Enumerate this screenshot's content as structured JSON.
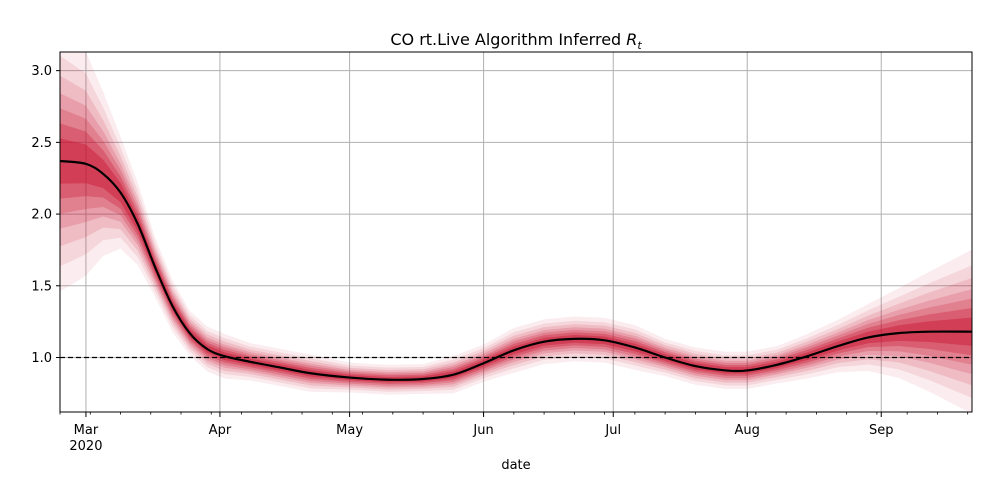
{
  "chart_data": {
    "type": "line",
    "title": "CO rt.Live Algorithm Inferred",
    "title_math": "R",
    "title_math_sub": "t",
    "xlabel": "date",
    "ylabel": "",
    "x_start": "2020-02-24",
    "x_end": "2020-09-22",
    "ylim": [
      0.62,
      3.13
    ],
    "grid": true,
    "yticks": [
      1.0,
      1.5,
      2.0,
      2.5,
      3.0
    ],
    "ytick_labels": [
      "1.0",
      "1.5",
      "2.0",
      "2.5",
      "3.0"
    ],
    "xticks": [
      {
        "date": "2020-03-01",
        "label": "Mar",
        "sublabel": "2020"
      },
      {
        "date": "2020-04-01",
        "label": "Apr"
      },
      {
        "date": "2020-05-01",
        "label": "May"
      },
      {
        "date": "2020-06-01",
        "label": "Jun"
      },
      {
        "date": "2020-07-01",
        "label": "Jul"
      },
      {
        "date": "2020-08-01",
        "label": "Aug"
      },
      {
        "date": "2020-09-01",
        "label": "Sep"
      }
    ],
    "reference_line": {
      "y": 1.0,
      "style": "dashed",
      "color": "#000000"
    },
    "series": [
      {
        "color": "#000000",
        "band_color": "#c8102e",
        "points": [
          {
            "x": "2020-02-24",
            "y": 2.37,
            "band": 0.35
          },
          {
            "x": "2020-03-01",
            "y": 2.35,
            "band": 0.3
          },
          {
            "x": "2020-03-05",
            "y": 2.28,
            "band": 0.22
          },
          {
            "x": "2020-03-09",
            "y": 2.15,
            "band": 0.15
          },
          {
            "x": "2020-03-13",
            "y": 1.93,
            "band": 0.11
          },
          {
            "x": "2020-03-17",
            "y": 1.63,
            "band": 0.08
          },
          {
            "x": "2020-03-21",
            "y": 1.36,
            "band": 0.07
          },
          {
            "x": "2020-03-25",
            "y": 1.17,
            "band": 0.06
          },
          {
            "x": "2020-03-29",
            "y": 1.06,
            "band": 0.06
          },
          {
            "x": "2020-04-02",
            "y": 1.01,
            "band": 0.06
          },
          {
            "x": "2020-04-08",
            "y": 0.97,
            "band": 0.05
          },
          {
            "x": "2020-04-15",
            "y": 0.93,
            "band": 0.05
          },
          {
            "x": "2020-04-22",
            "y": 0.89,
            "band": 0.05
          },
          {
            "x": "2020-05-01",
            "y": 0.86,
            "band": 0.04
          },
          {
            "x": "2020-05-10",
            "y": 0.845,
            "band": 0.04
          },
          {
            "x": "2020-05-18",
            "y": 0.85,
            "band": 0.04
          },
          {
            "x": "2020-05-25",
            "y": 0.88,
            "band": 0.05
          },
          {
            "x": "2020-06-01",
            "y": 0.96,
            "band": 0.05
          },
          {
            "x": "2020-06-08",
            "y": 1.05,
            "band": 0.06
          },
          {
            "x": "2020-06-15",
            "y": 1.11,
            "band": 0.06
          },
          {
            "x": "2020-06-22",
            "y": 1.13,
            "band": 0.06
          },
          {
            "x": "2020-06-29",
            "y": 1.12,
            "band": 0.06
          },
          {
            "x": "2020-07-06",
            "y": 1.07,
            "band": 0.06
          },
          {
            "x": "2020-07-13",
            "y": 1.0,
            "band": 0.05
          },
          {
            "x": "2020-07-20",
            "y": 0.94,
            "band": 0.05
          },
          {
            "x": "2020-07-27",
            "y": 0.91,
            "band": 0.05
          },
          {
            "x": "2020-08-01",
            "y": 0.91,
            "band": 0.05
          },
          {
            "x": "2020-08-08",
            "y": 0.95,
            "band": 0.05
          },
          {
            "x": "2020-08-15",
            "y": 1.01,
            "band": 0.06
          },
          {
            "x": "2020-08-22",
            "y": 1.08,
            "band": 0.07
          },
          {
            "x": "2020-08-29",
            "y": 1.14,
            "band": 0.09
          },
          {
            "x": "2020-09-05",
            "y": 1.17,
            "band": 0.12
          },
          {
            "x": "2020-09-12",
            "y": 1.18,
            "band": 0.16
          },
          {
            "x": "2020-09-22",
            "y": 1.18,
            "band": 0.22
          }
        ]
      }
    ]
  }
}
